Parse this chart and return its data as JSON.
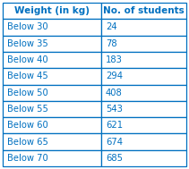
{
  "col1_header": "Weight (in kg)",
  "col2_header": "No. of students",
  "rows": [
    [
      "Below 30",
      "24"
    ],
    [
      "Below 35",
      "78"
    ],
    [
      "Below 40",
      "183"
    ],
    [
      "Below 45",
      "294"
    ],
    [
      "Below 50",
      "408"
    ],
    [
      "Below 55",
      "543"
    ],
    [
      "Below 60",
      "621"
    ],
    [
      "Below 65",
      "674"
    ],
    [
      "Below 70",
      "685"
    ]
  ],
  "header_text_color": "#0070c0",
  "row_text_color": "#0070c0",
  "border_color": "#0070c0",
  "header_fontsize": 7.5,
  "row_fontsize": 7.2,
  "fig_width": 2.11,
  "fig_height": 1.89,
  "dpi": 100
}
